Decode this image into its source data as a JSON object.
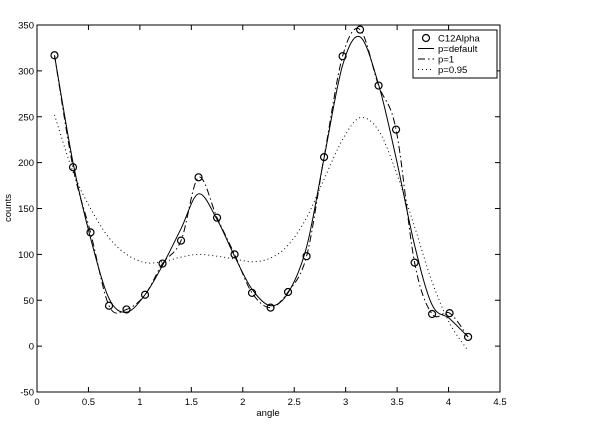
{
  "chart_data": {
    "type": "line",
    "xlabel": "angle",
    "ylabel": "counts",
    "xlim": [
      0,
      4.5
    ],
    "ylim": [
      -50,
      350
    ],
    "xticks": [
      0,
      0.5,
      1,
      1.5,
      2,
      2.5,
      3,
      3.5,
      4,
      4.5
    ],
    "yticks": [
      -50,
      0,
      50,
      100,
      150,
      200,
      250,
      300,
      350
    ],
    "grid": false,
    "legend_position": "top-right",
    "series": [
      {
        "name": "C12Alpha",
        "style": "markers-circle",
        "x": [
          0.17,
          0.35,
          0.52,
          0.7,
          0.87,
          1.05,
          1.22,
          1.4,
          1.57,
          1.75,
          1.92,
          2.09,
          2.27,
          2.44,
          2.62,
          2.79,
          2.97,
          3.14,
          3.32,
          3.49,
          3.67,
          3.84,
          4.01,
          4.19
        ],
        "y": [
          317,
          195,
          124,
          44,
          40,
          56,
          90,
          115,
          184,
          140,
          100,
          58,
          42,
          59,
          98,
          206,
          316,
          345,
          284,
          236,
          91,
          35,
          36,
          10
        ]
      },
      {
        "name": "p=default",
        "style": "solid",
        "x": [
          0.17,
          0.35,
          0.52,
          0.7,
          0.87,
          1.05,
          1.22,
          1.4,
          1.57,
          1.75,
          1.92,
          2.09,
          2.27,
          2.44,
          2.62,
          2.79,
          2.97,
          3.14,
          3.32,
          3.49,
          3.67,
          3.84,
          4.01,
          4.19
        ],
        "y": [
          317,
          200,
          118,
          52,
          37,
          56,
          88,
          128,
          166,
          138,
          98,
          62,
          44,
          58,
          108,
          205,
          306,
          337,
          285,
          205,
          110,
          45,
          30,
          10
        ]
      },
      {
        "name": "p=1",
        "style": "dashdot",
        "x": [
          0.17,
          0.35,
          0.52,
          0.7,
          0.87,
          1.05,
          1.22,
          1.4,
          1.57,
          1.75,
          1.92,
          2.09,
          2.27,
          2.44,
          2.62,
          2.79,
          2.97,
          3.14,
          3.32,
          3.49,
          3.67,
          3.84,
          4.01,
          4.19
        ],
        "y": [
          317,
          195,
          124,
          44,
          40,
          56,
          90,
          115,
          184,
          140,
          100,
          58,
          42,
          59,
          98,
          206,
          316,
          345,
          284,
          236,
          91,
          35,
          36,
          10
        ]
      },
      {
        "name": "p=0.95",
        "style": "dotted",
        "x": [
          0.17,
          0.35,
          0.52,
          0.7,
          0.87,
          1.05,
          1.22,
          1.4,
          1.57,
          1.75,
          1.92,
          2.09,
          2.27,
          2.44,
          2.62,
          2.79,
          2.97,
          3.14,
          3.32,
          3.49,
          3.67,
          3.84,
          4.01,
          4.19
        ],
        "y": [
          252,
          190,
          150,
          118,
          100,
          91,
          92,
          97,
          100,
          98,
          95,
          92,
          96,
          110,
          140,
          182,
          225,
          249,
          235,
          190,
          130,
          70,
          25,
          -5
        ]
      }
    ]
  }
}
